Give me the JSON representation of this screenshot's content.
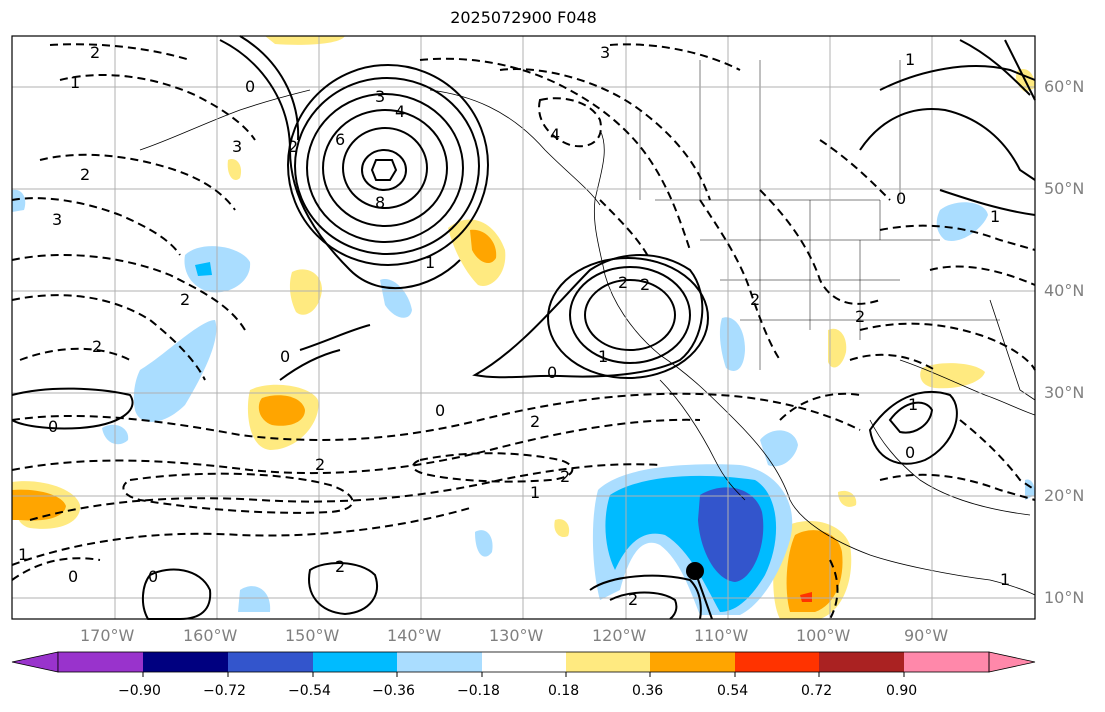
{
  "title": "2025072900 F048",
  "lat_labels": [
    "60°N",
    "50°N",
    "40°N",
    "30°N",
    "20°N",
    "10°N"
  ],
  "lon_labels": [
    "170°W",
    "160°W",
    "150°W",
    "140°W",
    "130°W",
    "120°W",
    "110°W",
    "100°W",
    "90°W"
  ],
  "colorbar": {
    "ticks": [
      "−0.90",
      "−0.72",
      "−0.54",
      "−0.36",
      "−0.18",
      "0.18",
      "0.36",
      "0.54",
      "0.72",
      "0.90"
    ],
    "colors": [
      "#9933cc",
      "#000080",
      "#3355cc",
      "#00bbff",
      "#aaddff",
      "#ffffff",
      "#ffea80",
      "#ffa500",
      "#ff3300",
      "#aa2222",
      "#ff88aa"
    ]
  },
  "contour_labels": [
    "2",
    "1",
    "0",
    "3",
    "2",
    "3",
    "2",
    "2",
    "2",
    "0",
    "1",
    "3",
    "6",
    "8",
    "4",
    "3",
    "4",
    "1",
    "0",
    "2",
    "2",
    "1",
    "0",
    "0",
    "2",
    "2",
    "1",
    "2",
    "1",
    "2",
    "0",
    "0",
    "0",
    "2",
    "2",
    "1",
    "0",
    "2",
    "1",
    "1"
  ],
  "colors": {
    "frame": "#000000",
    "grid": "#b0b0b0",
    "land_border": "#000000"
  }
}
